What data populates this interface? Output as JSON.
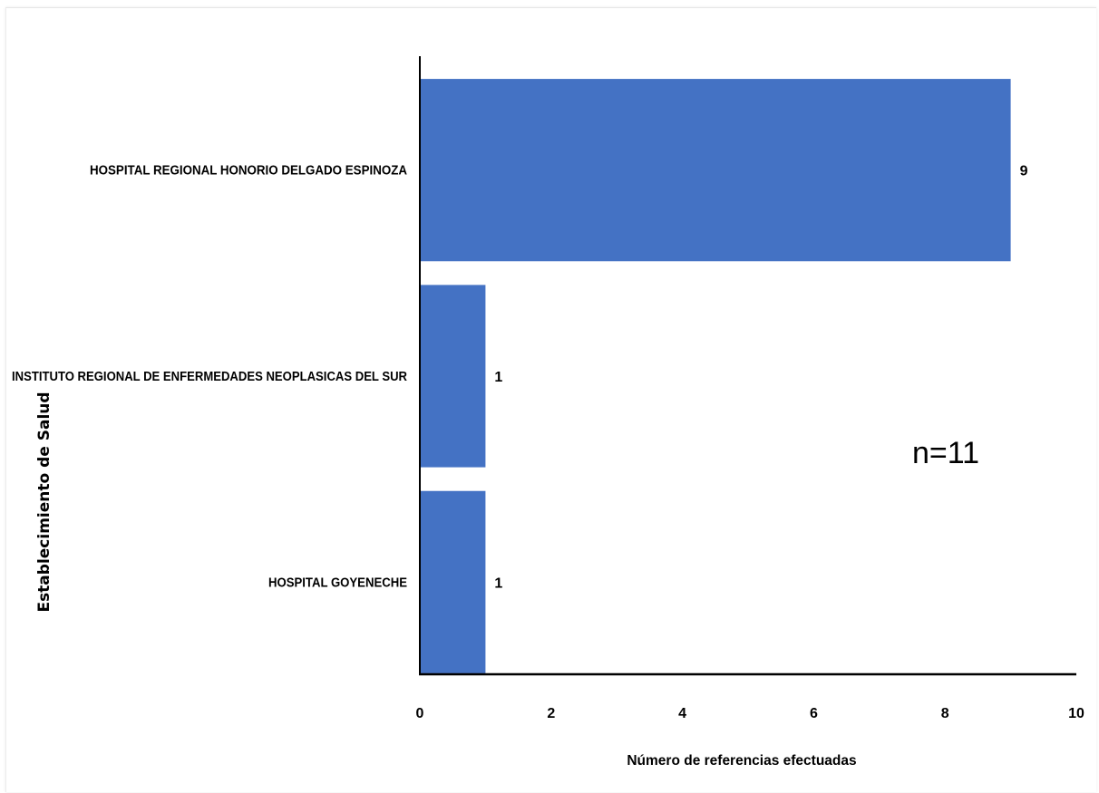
{
  "chart_data": {
    "type": "bar",
    "orientation": "horizontal",
    "categories": [
      "HOSPITAL REGIONAL HONORIO DELGADO ESPINOZA",
      "INSTITUTO REGIONAL DE ENFERMEDADES NEOPLASICAS DEL SUR",
      "HOSPITAL GOYENECHE"
    ],
    "values": [
      9,
      1,
      1
    ],
    "data_labels": [
      "9",
      "1",
      "1"
    ],
    "xlabel": "Número de referencias efectuadas",
    "ylabel": "Establecimiento de Salud",
    "xlim": [
      0,
      10
    ],
    "xticks": [
      0,
      2,
      4,
      6,
      8,
      10
    ],
    "xtick_labels": [
      "0",
      "2",
      "4",
      "6",
      "8",
      "10"
    ],
    "annotation": "n=11",
    "bar_color": "#4472C4",
    "grid": false,
    "legend": "none"
  }
}
